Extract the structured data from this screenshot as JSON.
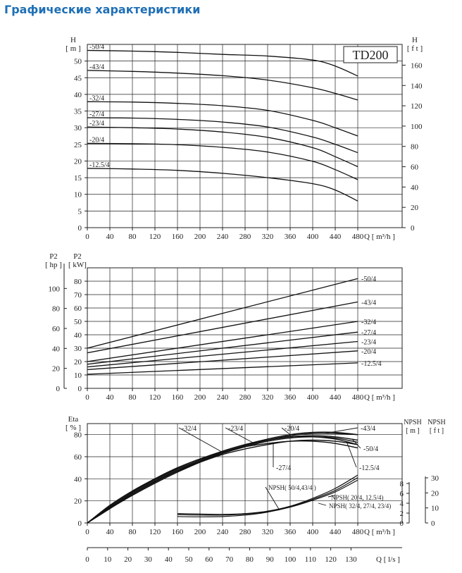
{
  "page": {
    "title": "Графические характеристики"
  },
  "chart_data": [
    {
      "id": "head",
      "type": "line",
      "model_label": "TD200",
      "xlabel": "Q [ m³/h ]",
      "ylabel_left": [
        "H",
        "[ m ]"
      ],
      "ylabel_right": [
        "H",
        "[ f t ]"
      ],
      "xlim": [
        0,
        480
      ],
      "ylim": [
        0,
        55
      ],
      "x_ticks": [
        0,
        40,
        80,
        120,
        160,
        200,
        240,
        280,
        320,
        360,
        400,
        440,
        480
      ],
      "y_ticks_left": [
        0,
        5,
        10,
        15,
        20,
        25,
        30,
        35,
        40,
        45,
        50
      ],
      "y_ticks_right_ft": [
        0,
        20,
        40,
        60,
        80,
        100,
        120,
        140,
        160
      ],
      "grid": true,
      "series": [
        {
          "name": "-50/4",
          "x": [
            0,
            80,
            160,
            240,
            320,
            400,
            440,
            480
          ],
          "y": [
            53.2,
            53.0,
            52.6,
            52.0,
            51.5,
            50.3,
            48.5,
            45.5
          ]
        },
        {
          "name": "-43/4",
          "x": [
            0,
            80,
            160,
            240,
            320,
            400,
            440,
            480
          ],
          "y": [
            47.2,
            46.9,
            46.4,
            45.6,
            44.3,
            42.0,
            40.3,
            38.3
          ]
        },
        {
          "name": "-32/4",
          "x": [
            0,
            80,
            160,
            240,
            320,
            400,
            440,
            480
          ],
          "y": [
            37.8,
            37.7,
            37.3,
            36.6,
            35.2,
            32.2,
            30.0,
            27.5
          ]
        },
        {
          "name": "-27/4",
          "x": [
            0,
            80,
            160,
            240,
            320,
            400,
            440,
            480
          ],
          "y": [
            33.0,
            32.9,
            32.5,
            31.7,
            30.2,
            27.2,
            25.0,
            22.5
          ]
        },
        {
          "name": "-23/4",
          "x": [
            0,
            80,
            160,
            240,
            320,
            400,
            440,
            480
          ],
          "y": [
            30.2,
            30.0,
            29.6,
            28.7,
            27.1,
            24.0,
            21.3,
            18.3
          ]
        },
        {
          "name": "-20/4",
          "x": [
            0,
            80,
            160,
            240,
            320,
            400,
            440,
            480
          ],
          "y": [
            25.3,
            25.2,
            24.9,
            24.1,
            22.7,
            19.9,
            17.4,
            14.4
          ]
        },
        {
          "name": "-12.5/4",
          "x": [
            0,
            80,
            160,
            240,
            320,
            400,
            440,
            480
          ],
          "y": [
            17.8,
            17.6,
            17.2,
            16.3,
            15.0,
            13.2,
            11.3,
            8.0
          ]
        }
      ]
    },
    {
      "id": "power",
      "type": "line",
      "xlabel": "Q [ m³/h ]",
      "ylabel_left": [
        "P2",
        "[ kW]"
      ],
      "ylabel_left2": [
        "P2",
        "[ hp ]"
      ],
      "xlim": [
        0,
        480
      ],
      "ylim": [
        0,
        90
      ],
      "x_ticks": [
        0,
        40,
        80,
        120,
        160,
        200,
        240,
        280,
        320,
        360,
        400,
        440,
        480
      ],
      "y_ticks_kw": [
        0,
        10,
        20,
        30,
        40,
        50,
        60,
        70,
        80
      ],
      "y_ticks_hp": [
        0,
        20,
        40,
        60,
        80,
        100
      ],
      "grid": true,
      "series": [
        {
          "name": "-50/4",
          "x": [
            0,
            480
          ],
          "y": [
            30.0,
            82.0
          ]
        },
        {
          "name": "-43/4",
          "x": [
            0,
            480
          ],
          "y": [
            26.5,
            64.5
          ]
        },
        {
          "name": "-32/4",
          "x": [
            0,
            480
          ],
          "y": [
            20.0,
            50.0
          ]
        },
        {
          "name": "-27/4",
          "x": [
            0,
            480
          ],
          "y": [
            18.0,
            42.0
          ]
        },
        {
          "name": "-23/4",
          "x": [
            0,
            480
          ],
          "y": [
            16.0,
            35.0
          ]
        },
        {
          "name": "-20/4",
          "x": [
            0,
            480
          ],
          "y": [
            14.0,
            28.0
          ]
        },
        {
          "name": "-12.5/4",
          "x": [
            0,
            480
          ],
          "y": [
            10.5,
            19.0
          ]
        }
      ]
    },
    {
      "id": "eta",
      "type": "line",
      "xlabel": "Q [ m³/h ]",
      "xlabel2": "Q  [ l/s ]",
      "ylabel_left": [
        "Eta",
        "[ % ]"
      ],
      "ylabel_npsh_m": [
        "NPSH",
        "[ m ]"
      ],
      "ylabel_npsh_ft": [
        "NPSH",
        "[ f t ]"
      ],
      "xlim": [
        0,
        480
      ],
      "ylim": [
        0,
        90
      ],
      "x_ticks": [
        0,
        40,
        80,
        120,
        160,
        200,
        240,
        280,
        320,
        360,
        400,
        440,
        480
      ],
      "x_ticks_ls": [
        0,
        10,
        20,
        30,
        40,
        50,
        60,
        70,
        80,
        90,
        100,
        110,
        120,
        130
      ],
      "y_ticks_left": [
        0,
        20,
        40,
        60,
        80
      ],
      "npsh_m_ticks": [
        0,
        2,
        4,
        6,
        8
      ],
      "npsh_ft_ticks": [
        0,
        10,
        20,
        30
      ],
      "grid": true,
      "eta_series": [
        {
          "name": "-32/4",
          "x": [
            0,
            40,
            80,
            120,
            160,
            200,
            240,
            280,
            320,
            360,
            400,
            440,
            480
          ],
          "y": [
            0,
            16,
            29,
            40,
            50,
            58,
            64,
            69,
            72,
            74,
            74,
            72,
            68
          ]
        },
        {
          "name": "-23/4",
          "x": [
            0,
            40,
            80,
            120,
            160,
            200,
            240,
            280,
            320,
            360,
            400,
            440,
            480
          ],
          "y": [
            0,
            14,
            27,
            38,
            48,
            56,
            63,
            69,
            74,
            77,
            78,
            77,
            73
          ]
        },
        {
          "name": "-20/4",
          "x": [
            0,
            40,
            80,
            120,
            160,
            200,
            240,
            280,
            320,
            360,
            400,
            440,
            480
          ],
          "y": [
            0,
            15,
            28,
            39,
            49,
            57,
            65,
            71,
            76,
            80,
            82,
            82,
            80
          ]
        },
        {
          "name": "-43/4",
          "x": [
            0,
            40,
            80,
            120,
            160,
            200,
            240,
            280,
            320,
            360,
            400,
            440,
            480
          ],
          "y": [
            0,
            13,
            25,
            36,
            46,
            55,
            63,
            70,
            75,
            79,
            81,
            81,
            80
          ]
        },
        {
          "name": "-50/4",
          "x": [
            0,
            40,
            80,
            120,
            160,
            200,
            240,
            280,
            320,
            360,
            400,
            440,
            480
          ],
          "y": [
            0,
            13,
            26,
            37,
            47,
            56,
            64,
            70,
            75,
            78,
            79,
            78,
            75
          ]
        },
        {
          "name": "-27/4",
          "x": [
            0,
            40,
            80,
            120,
            160,
            200,
            240,
            280,
            320,
            360,
            400,
            440,
            480
          ],
          "y": [
            0,
            14,
            26,
            37,
            47,
            55,
            62,
            67,
            71,
            74,
            75,
            74,
            71
          ]
        },
        {
          "name": "-12.5/4",
          "x": [
            0,
            40,
            80,
            120,
            160,
            200,
            240,
            280,
            320,
            360,
            400,
            440,
            480
          ],
          "y": [
            0,
            15,
            28,
            40,
            50,
            58,
            65,
            71,
            75,
            78,
            78,
            76,
            71
          ]
        }
      ],
      "npsh_series": [
        {
          "name": "NPSH( 50/4,43/4 )",
          "x": [
            160,
            200,
            240,
            280,
            320,
            360,
            400,
            440,
            480
          ],
          "y_m": [
            1.9,
            1.8,
            1.75,
            1.9,
            2.4,
            3.4,
            5.0,
            7.0,
            9.7
          ]
        },
        {
          "name": "NPSH( 20/4, 12.5/4)",
          "x": [
            160,
            200,
            240,
            280,
            320,
            360,
            400,
            440,
            480
          ],
          "y_m": [
            1.7,
            1.6,
            1.6,
            1.8,
            2.3,
            3.3,
            4.8,
            6.6,
            9.2
          ]
        },
        {
          "name": "NPSH( 32/4, 27/4, 23/4)",
          "x": [
            160,
            200,
            240,
            280,
            320,
            360,
            400,
            440,
            480
          ],
          "y_m": [
            1.3,
            1.25,
            1.3,
            1.6,
            2.2,
            3.2,
            4.6,
            6.3,
            8.7
          ]
        }
      ],
      "eta_label_texts": [
        "-32/4",
        "-23/4",
        "-20/4",
        "-43/4",
        "-50/4",
        "-27/4",
        "-12.5/4"
      ]
    }
  ]
}
